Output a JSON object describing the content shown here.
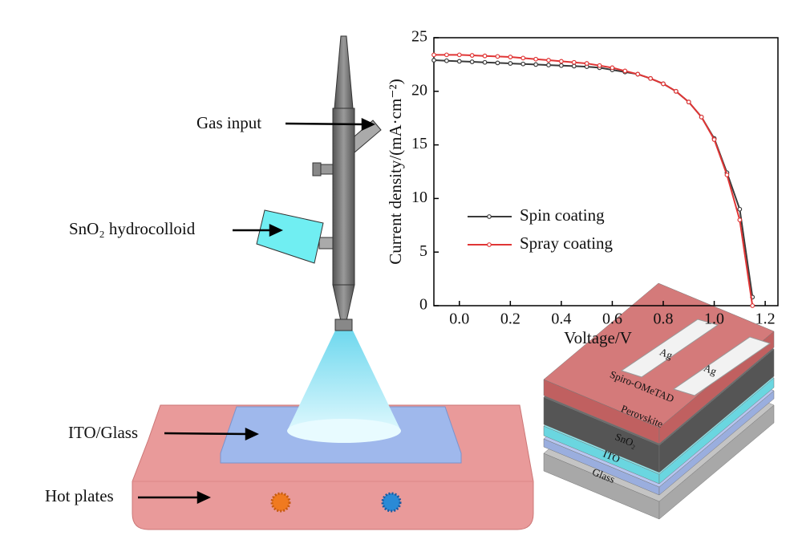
{
  "chart_data": {
    "type": "line",
    "xlabel": "Voltage/V",
    "ylabel": "Current density/(mA·cm⁻²)",
    "x": [
      -0.1,
      -0.05,
      0,
      0.05,
      0.1,
      0.15,
      0.2,
      0.25,
      0.3,
      0.35,
      0.4,
      0.45,
      0.5,
      0.55,
      0.6,
      0.65,
      0.7,
      0.75,
      0.8,
      0.85,
      0.9,
      0.95,
      1.0,
      1.05,
      1.1,
      1.15
    ],
    "series": [
      {
        "name": "Spin coating",
        "color": "#3a3a3a",
        "values": [
          22.9,
          22.85,
          22.8,
          22.75,
          22.7,
          22.65,
          22.6,
          22.55,
          22.5,
          22.45,
          22.4,
          22.35,
          22.3,
          22.2,
          22.0,
          21.8,
          21.6,
          21.2,
          20.7,
          20.0,
          19.0,
          17.6,
          15.6,
          12.4,
          9.0,
          0.8
        ]
      },
      {
        "name": "Spray coating",
        "color": "#e03535",
        "values": [
          23.4,
          23.4,
          23.4,
          23.35,
          23.3,
          23.25,
          23.2,
          23.1,
          23.0,
          22.9,
          22.8,
          22.7,
          22.6,
          22.4,
          22.2,
          21.9,
          21.6,
          21.2,
          20.7,
          20.0,
          19.0,
          17.6,
          15.5,
          12.2,
          8.0,
          0
        ]
      }
    ],
    "xlim": [
      -0.1,
      1.25
    ],
    "xticks": [
      {
        "value": 0,
        "label": "0.0"
      },
      0.2,
      0.4,
      0.6,
      0.8,
      {
        "value": 1,
        "label": "1.0"
      },
      1.2
    ],
    "ylim": [
      0,
      25
    ],
    "yticks": [
      0,
      5,
      10,
      15,
      20,
      25
    ],
    "legend": "left"
  },
  "labels": {
    "gas_input": "Gas input",
    "hydrocolloid": "SnO₂ hydrocolloid",
    "ito_glass": "ITO/Glass",
    "hot_plates": "Hot plates"
  },
  "stack": {
    "ag_left": "Ag",
    "ag_right": "Ag",
    "spiro": "Spiro-OMeTAD",
    "perovskite": "Perovskite",
    "sno2": "SnO₂",
    "ito": "ITO",
    "glass": "Glass"
  }
}
